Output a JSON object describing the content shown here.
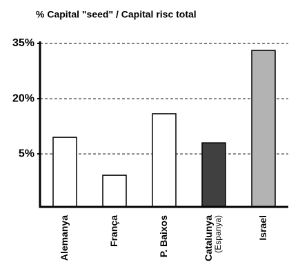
{
  "chart_data": {
    "type": "bar",
    "title": "% Capital \"seed\" / Capital risc total",
    "categories": [
      "Alemanya",
      "França",
      "P. Baixos",
      "Catalunya\n(Espanya)",
      "Israel"
    ],
    "values": [
      9.5,
      -0.8,
      15.9,
      8,
      33.1
    ],
    "colors": [
      "#ffffff",
      "#ffffff",
      "#ffffff",
      "#404040",
      "#b3b3b3"
    ],
    "ylim": [
      -9.4,
      35
    ],
    "yticks": [
      {
        "value": 5,
        "label": "5%"
      },
      {
        "value": 20,
        "label": "20%"
      },
      {
        "value": 35,
        "label": "35%"
      }
    ],
    "grid": true
  }
}
